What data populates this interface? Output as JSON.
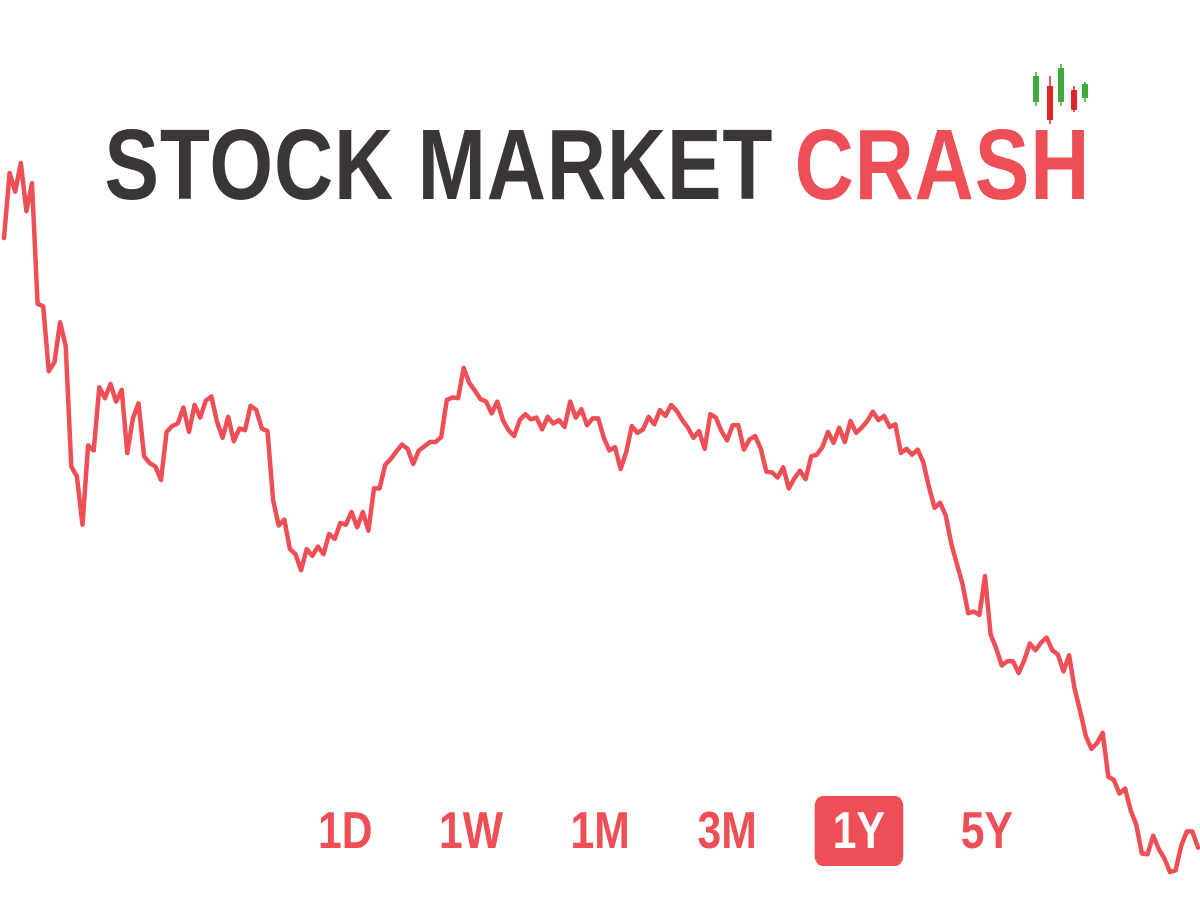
{
  "title": {
    "part1": "STOCK MARKET",
    "part2": "CRASH"
  },
  "colors": {
    "line": "#ee4e55",
    "title_dark": "#3a3536",
    "accent": "#ee4e55",
    "logo_green": "#3cab3c",
    "logo_red": "#e0252a"
  },
  "logo": {
    "icon": "candlestick-chart-icon"
  },
  "range_selector": {
    "options": [
      "1D",
      "1W",
      "1M",
      "3M",
      "1Y",
      "5Y"
    ],
    "selected": "1Y"
  },
  "chart_data": {
    "type": "line",
    "title": "",
    "xlabel": "",
    "ylabel": "",
    "axes_visible": false,
    "grid": false,
    "series": [
      {
        "values": [
          76.7,
          84.4,
          82.2,
          85.6,
          79.9,
          83.2,
          68.9,
          68.6,
          60.9,
          62.0,
          66.7,
          63.9,
          49.6,
          48.4,
          42.7,
          52.1,
          51.5,
          59.0,
          57.7,
          59.4,
          57.3,
          58.7,
          51.2,
          55.3,
          57.1,
          50.8,
          50.0,
          49.6,
          48.0,
          53.7,
          54.4,
          54.7,
          56.6,
          53.7,
          56.9,
          55.4,
          57.4,
          57.9,
          54.9,
          53.0,
          55.5,
          52.6,
          54.1,
          53.9,
          56.8,
          56.3,
          54.1,
          53.8,
          45.6,
          42.6,
          43.3,
          39.8,
          39.2,
          37.3,
          39.8,
          39.0,
          40.1,
          39.2,
          41.6,
          41.0,
          42.9,
          42.7,
          44.2,
          42.4,
          44.2,
          42.0,
          47.0,
          47.0,
          49.8,
          50.5,
          51.4,
          52.2,
          51.7,
          49.9,
          51.5,
          52.0,
          52.5,
          52.5,
          53.1,
          57.5,
          57.8,
          57.7,
          61.3,
          59.5,
          58.6,
          57.6,
          57.3,
          55.9,
          57.3,
          55.1,
          53.9,
          53.2,
          55.1,
          55.8,
          55.2,
          55.4,
          54.0,
          55.5,
          54.7,
          55.1,
          54.3,
          57.3,
          55.4,
          56.4,
          54.5,
          55.3,
          55.3,
          53.0,
          51.5,
          51.9,
          49.3,
          51.3,
          54.4,
          53.6,
          54.0,
          55.5,
          54.6,
          56.3,
          55.6,
          56.9,
          56.2,
          55.1,
          54.2,
          53.0,
          53.8,
          51.7,
          55.8,
          55.4,
          53.8,
          52.7,
          54.5,
          54.5,
          51.6,
          52.8,
          53.2,
          51.7,
          49.0,
          48.9,
          48.3,
          49.5,
          47.0,
          48.2,
          49.1,
          48.1,
          50.8,
          51.0,
          51.9,
          53.7,
          52.4,
          54.2,
          52.5,
          55.0,
          53.6,
          54.2,
          55.0,
          56.1,
          55.1,
          55.6,
          54.3,
          54.6,
          51.2,
          51.7,
          51.0,
          51.6,
          50.1,
          47.2,
          44.7,
          45.3,
          43.8,
          40.4,
          38.0,
          35.6,
          32.2,
          32.4,
          32.0,
          36.6,
          29.7,
          28.0,
          26.0,
          26.5,
          26.5,
          25.1,
          26.6,
          28.6,
          27.8,
          28.7,
          29.3,
          27.8,
          27.3,
          25.3,
          27.2,
          23.2,
          20.5,
          17.6,
          16.1,
          16.8,
          18.0,
          12.8,
          12.4,
          10.8,
          11.4,
          8.8,
          7.1,
          3.7,
          3.6,
          5.8,
          4.2,
          3.1,
          1.5,
          1.7,
          4.6,
          6.3,
          6.3,
          4.4
        ]
      }
    ]
  }
}
